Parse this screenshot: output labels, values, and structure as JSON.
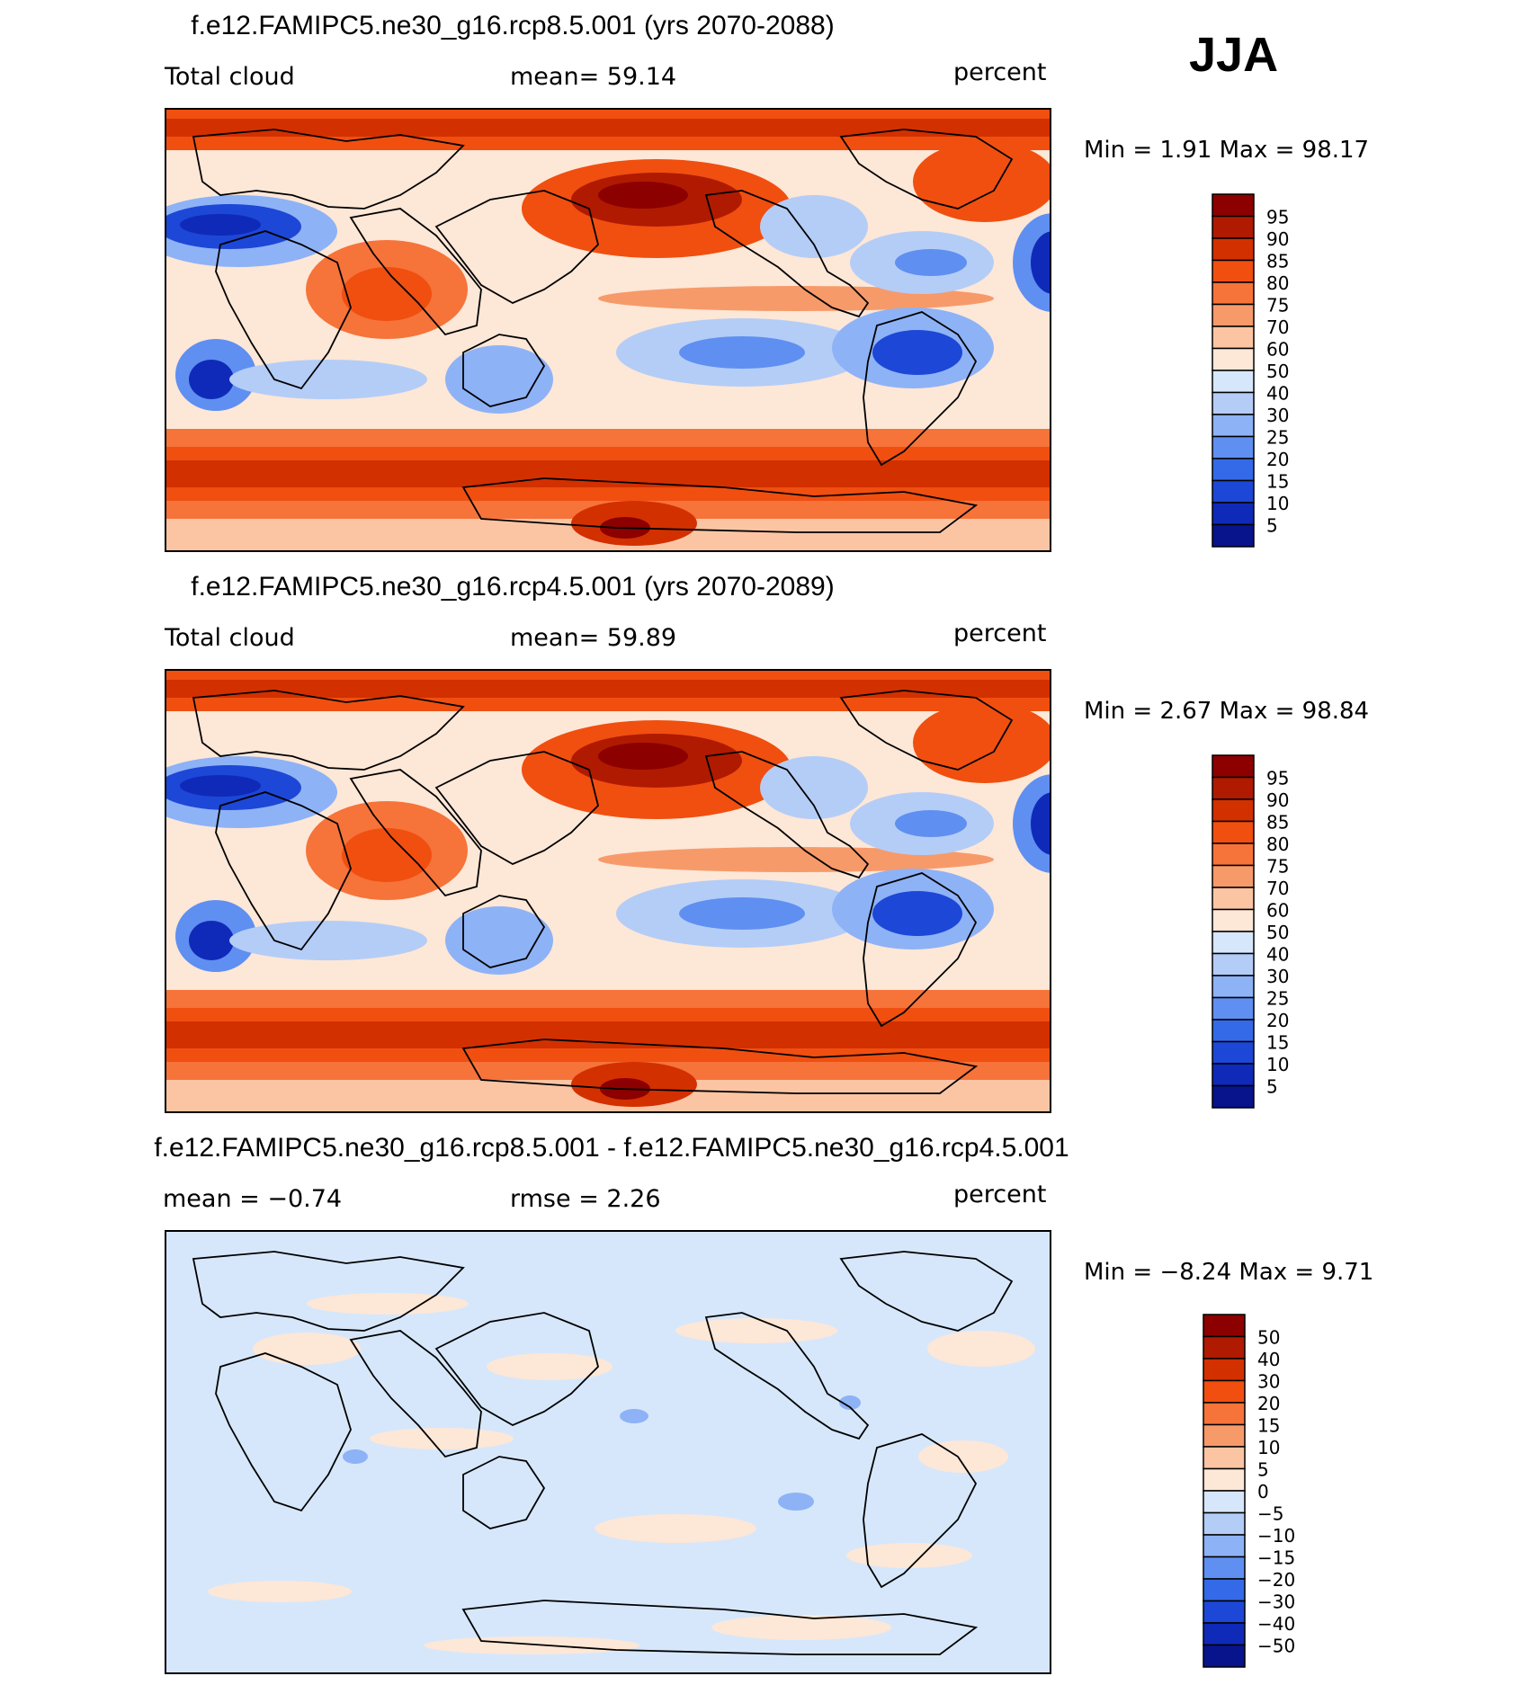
{
  "season": "JJA",
  "panels": [
    {
      "title": "f.e12.FAMIPC5.ne30_g16.rcp8.5.001 (yrs 2070-2088)",
      "left_text": "Total cloud",
      "mid_text": "mean=   59.14",
      "right_text": "percent",
      "minmax": "Min =     1.91  Max =    98.17",
      "min": 1.91,
      "max": 98.17,
      "colorbar_labels": [
        "95",
        "90",
        "85",
        "80",
        "75",
        "70",
        "60",
        "50",
        "40",
        "30",
        "25",
        "20",
        "15",
        "10",
        "5"
      ],
      "kind": "abs"
    },
    {
      "title": "f.e12.FAMIPC5.ne30_g16.rcp4.5.001 (yrs 2070-2089)",
      "left_text": "Total cloud",
      "mid_text": "mean=   59.89",
      "right_text": "percent",
      "minmax": "Min =     2.67  Max =    98.84",
      "min": 2.67,
      "max": 98.84,
      "colorbar_labels": [
        "95",
        "90",
        "85",
        "80",
        "75",
        "70",
        "60",
        "50",
        "40",
        "30",
        "25",
        "20",
        "15",
        "10",
        "5"
      ],
      "kind": "abs"
    },
    {
      "title": "f.e12.FAMIPC5.ne30_g16.rcp8.5.001 - f.e12.FAMIPC5.ne30_g16.rcp4.5.001",
      "left_text": "mean =   −0.74",
      "mid_text": "rmse =     2.26",
      "right_text": "percent",
      "minmax": "Min =   −8.24  Max =     9.71",
      "min": -8.24,
      "max": 9.71,
      "colorbar_labels": [
        "50",
        "40",
        "30",
        "20",
        "15",
        "10",
        "5",
        "0",
        "−5",
        "−10",
        "−15",
        "−20",
        "−30",
        "−40",
        "−50"
      ],
      "kind": "diff"
    }
  ],
  "colors": {
    "scale": [
      "#8c0000",
      "#b01a00",
      "#d33000",
      "#f04f10",
      "#f6733a",
      "#f79a6a",
      "#fbc5a4",
      "#fde7d7",
      "#d6e7fb",
      "#b4cdf7",
      "#8eb2f6",
      "#5f8ff1",
      "#346ae8",
      "#1d47d6",
      "#0f2ab8",
      "#08148c"
    ],
    "land_outline": "#000000"
  }
}
